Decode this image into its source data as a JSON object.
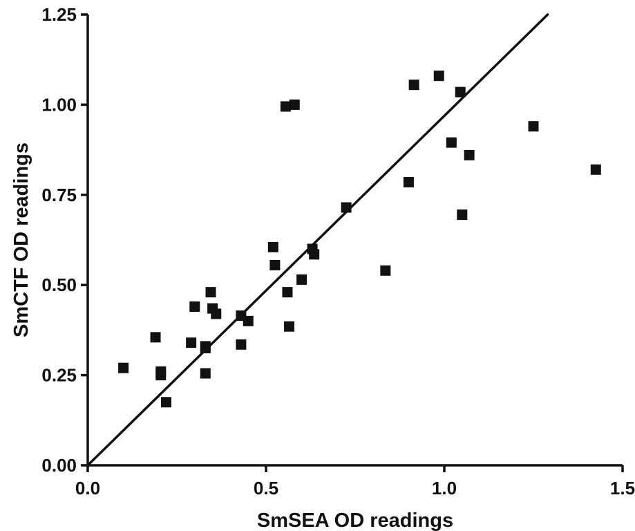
{
  "chart_data": {
    "type": "scatter",
    "title": "",
    "xlabel": "SmSEA OD readings",
    "ylabel": "SmCTF OD readings",
    "xlim": [
      0.0,
      1.5
    ],
    "ylim": [
      0.0,
      1.25
    ],
    "x_ticks": [
      0.0,
      0.5,
      1.0,
      1.5
    ],
    "x_tick_labels": [
      "0.0",
      "0.5",
      "1.0",
      "1.5"
    ],
    "y_ticks": [
      0.0,
      0.25,
      0.5,
      0.75,
      1.0,
      1.25
    ],
    "y_tick_labels": [
      "0.00",
      "0.25",
      "0.50",
      "0.75",
      "1.00",
      "1.25"
    ],
    "grid": false,
    "marker": "square",
    "marker_color": "#111111",
    "line_color": "#111111",
    "reference_line": {
      "x": [
        0.0,
        1.29
      ],
      "y": [
        0.0,
        1.25
      ]
    },
    "points": [
      [
        0.1,
        0.27
      ],
      [
        0.19,
        0.355
      ],
      [
        0.205,
        0.26
      ],
      [
        0.205,
        0.25
      ],
      [
        0.22,
        0.175
      ],
      [
        0.29,
        0.34
      ],
      [
        0.3,
        0.44
      ],
      [
        0.33,
        0.33
      ],
      [
        0.33,
        0.325
      ],
      [
        0.33,
        0.255
      ],
      [
        0.345,
        0.48
      ],
      [
        0.35,
        0.435
      ],
      [
        0.36,
        0.42
      ],
      [
        0.43,
        0.415
      ],
      [
        0.43,
        0.335
      ],
      [
        0.45,
        0.4
      ],
      [
        0.52,
        0.605
      ],
      [
        0.525,
        0.555
      ],
      [
        0.56,
        0.48
      ],
      [
        0.565,
        0.385
      ],
      [
        0.555,
        0.995
      ],
      [
        0.58,
        1.0
      ],
      [
        0.6,
        0.515
      ],
      [
        0.63,
        0.6
      ],
      [
        0.635,
        0.585
      ],
      [
        0.725,
        0.715
      ],
      [
        0.835,
        0.54
      ],
      [
        0.9,
        0.785
      ],
      [
        0.915,
        1.055
      ],
      [
        0.985,
        1.08
      ],
      [
        1.02,
        0.895
      ],
      [
        1.045,
        1.035
      ],
      [
        1.05,
        0.695
      ],
      [
        1.07,
        0.86
      ],
      [
        1.25,
        0.94
      ],
      [
        1.425,
        0.82
      ]
    ]
  }
}
